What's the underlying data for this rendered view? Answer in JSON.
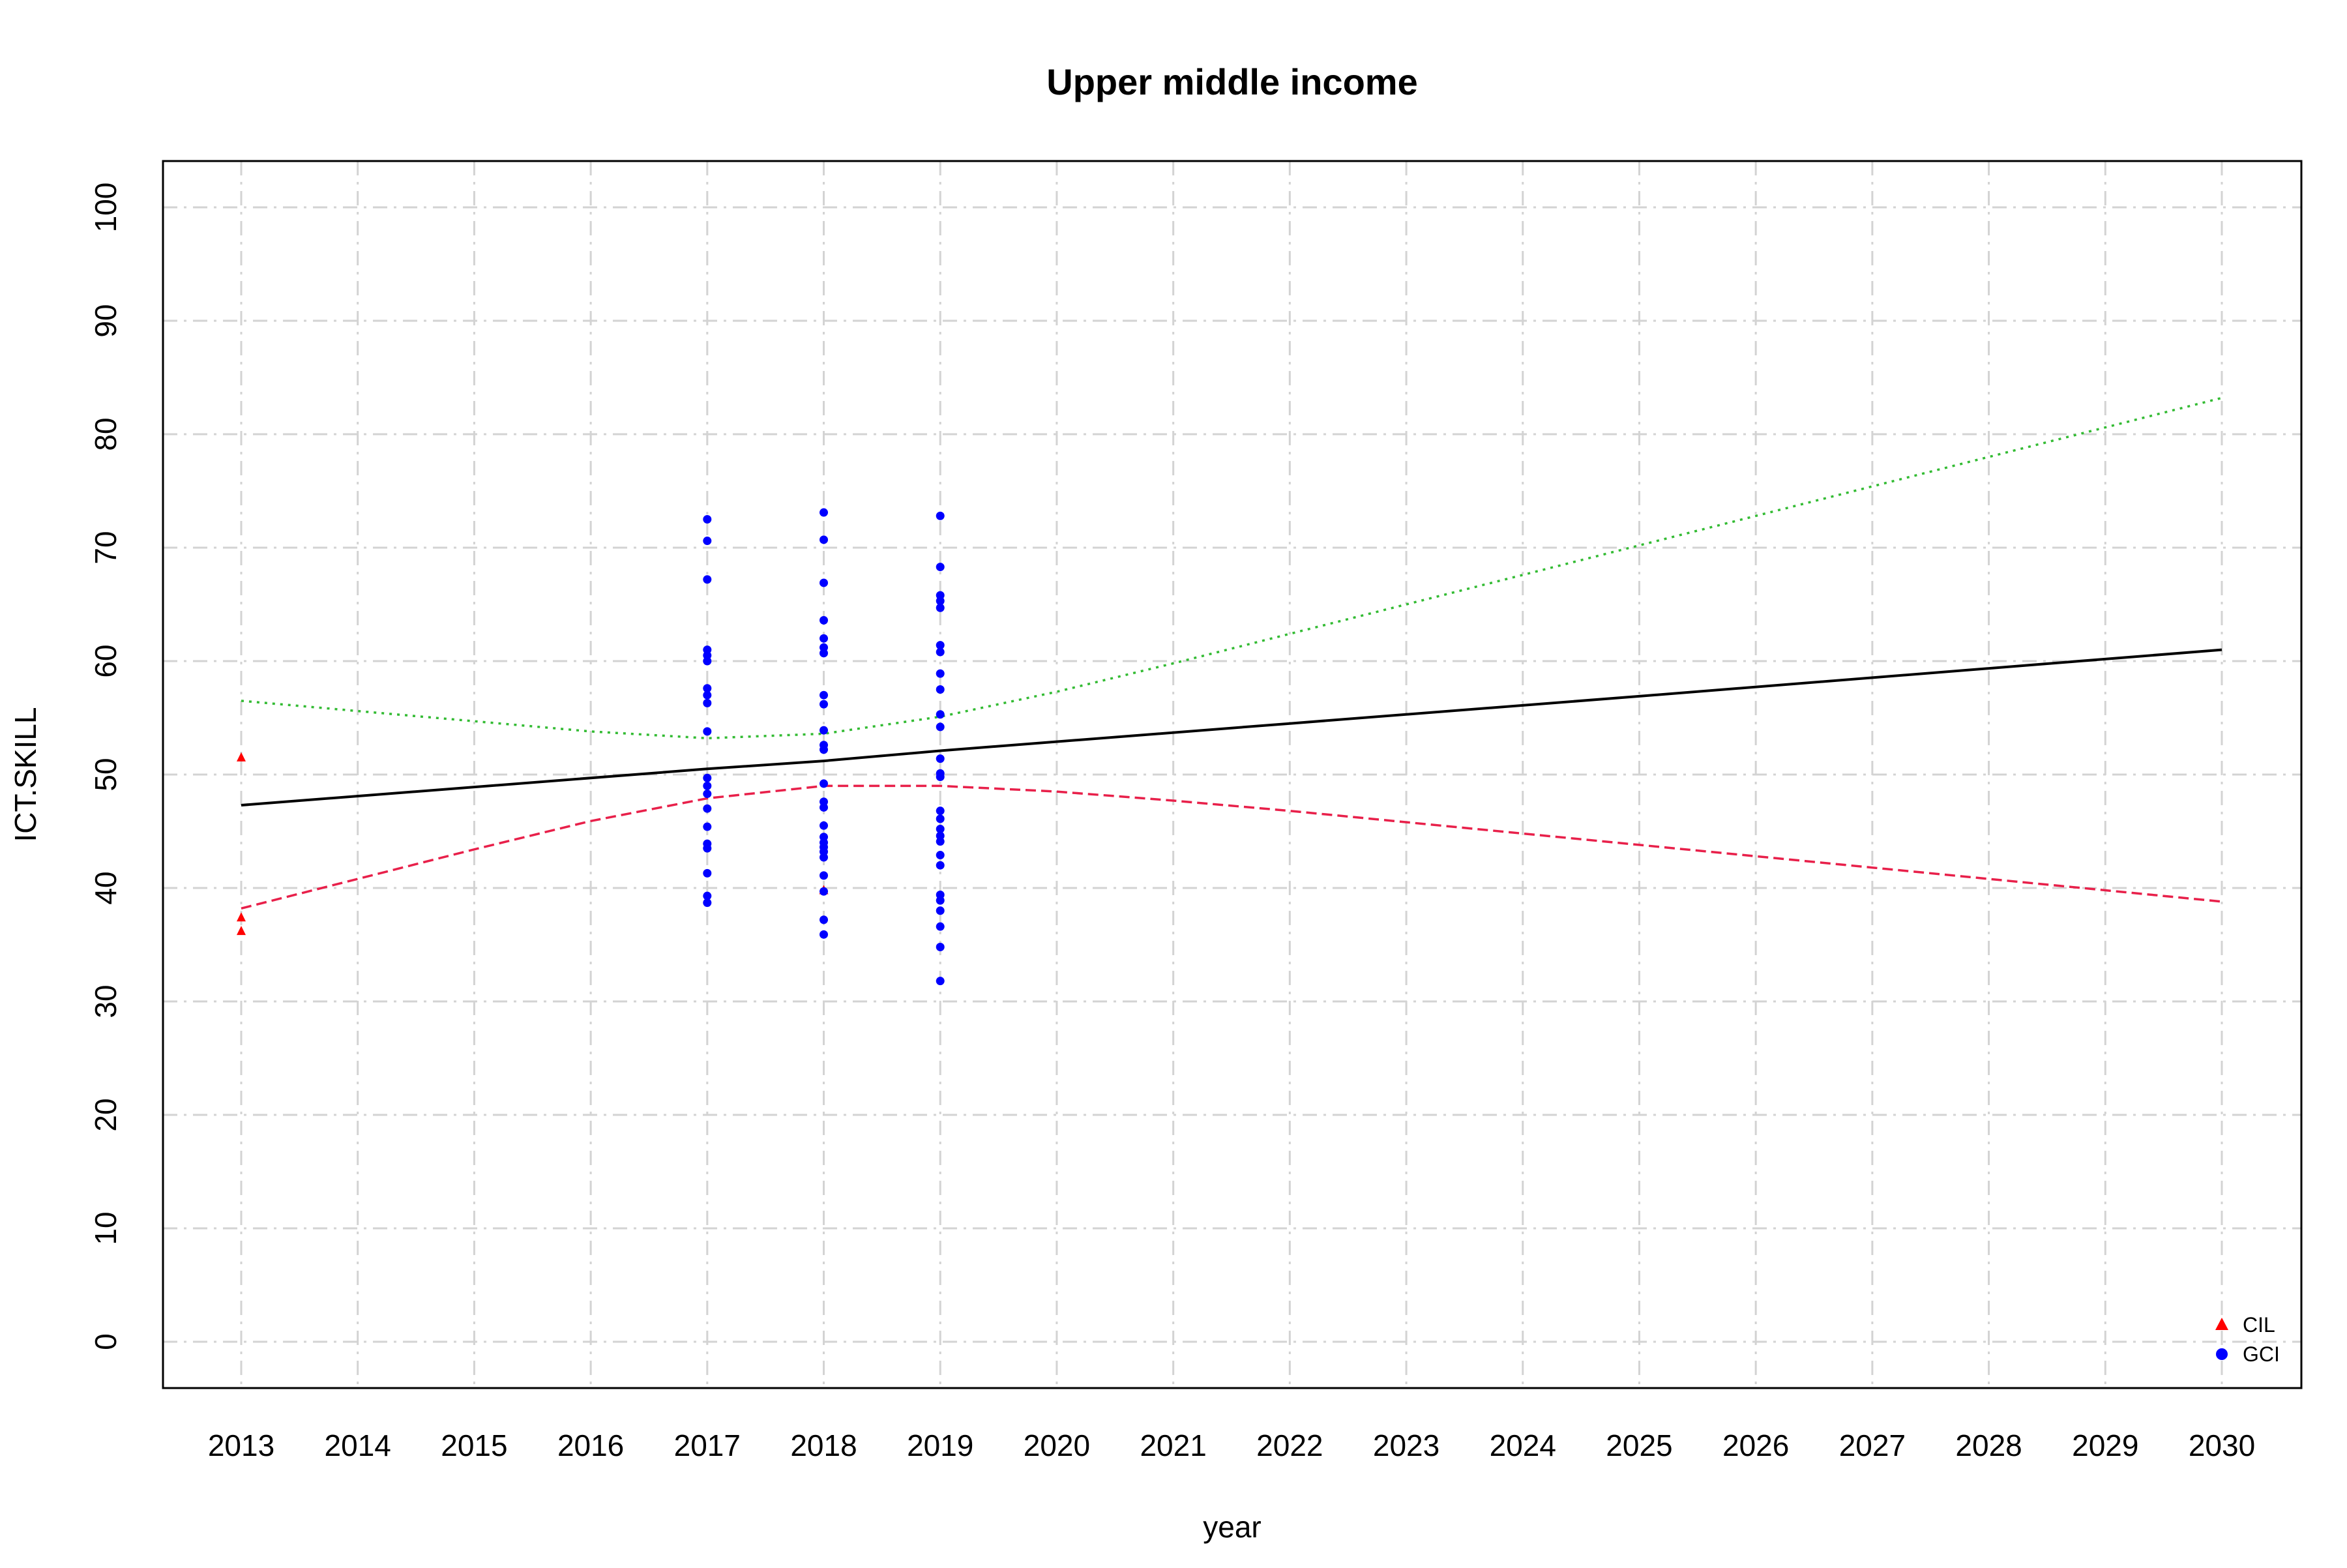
{
  "chart_data": {
    "type": "scatter",
    "title": "Upper middle income",
    "xlabel": "year",
    "ylabel": "ICT.SKILL",
    "xlim": [
      2013,
      2030
    ],
    "ylim": [
      0,
      100
    ],
    "x_ticks": [
      "2013",
      "2014",
      "2015",
      "2016",
      "2017",
      "2018",
      "2019",
      "2020",
      "2021",
      "2022",
      "2023",
      "2024",
      "2025",
      "2026",
      "2027",
      "2028",
      "2029",
      "2030"
    ],
    "y_ticks": [
      "0",
      "10",
      "20",
      "30",
      "40",
      "50",
      "60",
      "70",
      "80",
      "90",
      "100"
    ],
    "grid": true,
    "legend_position": "bottom-right",
    "series": [
      {
        "name": "CIL",
        "kind": "points",
        "marker": "triangle",
        "color": "#ff0000",
        "points": [
          [
            2013,
            51.5
          ],
          [
            2013,
            37.4
          ],
          [
            2013,
            36.2
          ],
          [
            2018,
            39.8
          ]
        ]
      },
      {
        "name": "GCI",
        "kind": "points",
        "marker": "circle",
        "color": "#0000ff",
        "points": [
          [
            2017,
            72.5
          ],
          [
            2017,
            70.6
          ],
          [
            2017,
            67.2
          ],
          [
            2017,
            61.0
          ],
          [
            2017,
            60.5
          ],
          [
            2017,
            60.0
          ],
          [
            2017,
            57.6
          ],
          [
            2017,
            57.0
          ],
          [
            2017,
            56.3
          ],
          [
            2017,
            53.8
          ],
          [
            2017,
            49.7
          ],
          [
            2017,
            49.0
          ],
          [
            2017,
            48.3
          ],
          [
            2017,
            47.0
          ],
          [
            2017,
            45.4
          ],
          [
            2017,
            43.9
          ],
          [
            2017,
            43.5
          ],
          [
            2017,
            41.3
          ],
          [
            2017,
            39.3
          ],
          [
            2017,
            38.7
          ],
          [
            2018,
            73.1
          ],
          [
            2018,
            70.7
          ],
          [
            2018,
            66.9
          ],
          [
            2018,
            63.6
          ],
          [
            2018,
            62.0
          ],
          [
            2018,
            61.2
          ],
          [
            2018,
            60.7
          ],
          [
            2018,
            57.0
          ],
          [
            2018,
            56.2
          ],
          [
            2018,
            53.9
          ],
          [
            2018,
            52.6
          ],
          [
            2018,
            52.2
          ],
          [
            2018,
            49.2
          ],
          [
            2018,
            47.6
          ],
          [
            2018,
            47.1
          ],
          [
            2018,
            45.5
          ],
          [
            2018,
            44.5
          ],
          [
            2018,
            44.0
          ],
          [
            2018,
            43.6
          ],
          [
            2018,
            43.2
          ],
          [
            2018,
            42.7
          ],
          [
            2018,
            41.1
          ],
          [
            2018,
            39.7
          ],
          [
            2018,
            37.2
          ],
          [
            2018,
            35.9
          ],
          [
            2019,
            72.8
          ],
          [
            2019,
            68.3
          ],
          [
            2019,
            65.8
          ],
          [
            2019,
            65.3
          ],
          [
            2019,
            64.7
          ],
          [
            2019,
            61.4
          ],
          [
            2019,
            60.8
          ],
          [
            2019,
            58.9
          ],
          [
            2019,
            57.5
          ],
          [
            2019,
            55.3
          ],
          [
            2019,
            54.2
          ],
          [
            2019,
            51.4
          ],
          [
            2019,
            50.1
          ],
          [
            2019,
            49.8
          ],
          [
            2019,
            46.8
          ],
          [
            2019,
            46.1
          ],
          [
            2019,
            45.2
          ],
          [
            2019,
            44.6
          ],
          [
            2019,
            44.1
          ],
          [
            2019,
            42.9
          ],
          [
            2019,
            42.0
          ],
          [
            2019,
            39.4
          ],
          [
            2019,
            38.9
          ],
          [
            2019,
            38.0
          ],
          [
            2019,
            36.6
          ],
          [
            2019,
            34.8
          ],
          [
            2019,
            31.8
          ]
        ]
      },
      {
        "kind": "line",
        "style": "solid",
        "color": "#000000",
        "points": [
          [
            2013,
            47.3
          ],
          [
            2017,
            50.5
          ],
          [
            2018,
            51.2
          ],
          [
            2019,
            52.1
          ],
          [
            2022,
            54.5
          ],
          [
            2025,
            56.9
          ],
          [
            2030,
            61.0
          ]
        ]
      },
      {
        "kind": "line",
        "style": "dotted",
        "color": "#33bb33",
        "points": [
          [
            2013,
            56.5
          ],
          [
            2014,
            55.6
          ],
          [
            2015,
            54.7
          ],
          [
            2016,
            53.8
          ],
          [
            2017,
            53.2
          ],
          [
            2018,
            53.6
          ],
          [
            2019,
            55.1
          ],
          [
            2020,
            57.3
          ],
          [
            2021,
            59.8
          ],
          [
            2022,
            62.4
          ],
          [
            2023,
            65.0
          ],
          [
            2024,
            67.6
          ],
          [
            2025,
            70.2
          ],
          [
            2026,
            72.8
          ],
          [
            2027,
            75.4
          ],
          [
            2028,
            78.0
          ],
          [
            2029,
            80.6
          ],
          [
            2030,
            83.2
          ]
        ]
      },
      {
        "kind": "line",
        "style": "dashed",
        "color": "#e8204a",
        "points": [
          [
            2013,
            38.2
          ],
          [
            2014,
            40.8
          ],
          [
            2015,
            43.4
          ],
          [
            2016,
            45.9
          ],
          [
            2017,
            47.9
          ],
          [
            2018,
            49.0
          ],
          [
            2019,
            49.0
          ],
          [
            2020,
            48.5
          ],
          [
            2021,
            47.7
          ],
          [
            2022,
            46.8
          ],
          [
            2023,
            45.8
          ],
          [
            2024,
            44.8
          ],
          [
            2025,
            43.8
          ],
          [
            2026,
            42.8
          ],
          [
            2027,
            41.8
          ],
          [
            2028,
            40.8
          ],
          [
            2029,
            39.8
          ],
          [
            2030,
            38.8
          ]
        ]
      }
    ]
  }
}
